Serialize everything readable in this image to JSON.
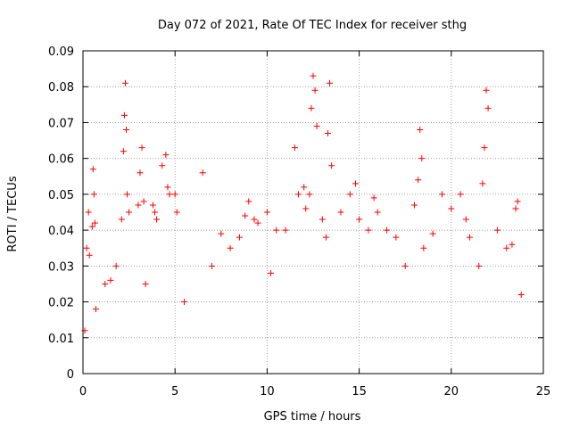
{
  "chart_data": {
    "type": "scatter",
    "title": "Day 072 of 2021, Rate Of TEC Index for receiver sthg",
    "xlabel": "GPS time / hours",
    "ylabel": "ROTI / TECUs",
    "xlim": [
      0,
      25
    ],
    "ylim": [
      0,
      0.09
    ],
    "x_ticks": [
      0,
      5,
      10,
      15,
      20,
      25
    ],
    "x_tick_labels": [
      "0",
      "5",
      "10",
      "15",
      "20",
      "25"
    ],
    "y_ticks": [
      0,
      0.01,
      0.02,
      0.03,
      0.04,
      0.05,
      0.06,
      0.07,
      0.08,
      0.09
    ],
    "y_tick_labels": [
      "0",
      "0.01",
      "0.02",
      "0.03",
      "0.04",
      "0.05",
      "0.06",
      "0.07",
      "0.08",
      "0.09"
    ],
    "grid": true,
    "marker": "+",
    "color": "#ff0000",
    "series": [
      {
        "name": "ROTI",
        "x": [
          0.1,
          0.2,
          0.3,
          0.35,
          0.5,
          0.55,
          0.6,
          0.65,
          0.7,
          1.2,
          1.5,
          1.8,
          2.1,
          2.2,
          2.25,
          2.3,
          2.35,
          2.4,
          2.5,
          3.0,
          3.1,
          3.2,
          3.3,
          3.4,
          3.8,
          3.9,
          4.0,
          4.3,
          4.5,
          4.6,
          4.7,
          5.0,
          5.1,
          5.5,
          6.5,
          7.0,
          7.5,
          8.0,
          8.5,
          8.8,
          9.0,
          9.3,
          9.5,
          10.0,
          10.2,
          10.5,
          11.0,
          11.5,
          11.7,
          12.0,
          12.1,
          12.3,
          12.4,
          12.5,
          12.6,
          12.7,
          13.0,
          13.2,
          13.3,
          13.4,
          13.5,
          14.0,
          14.5,
          14.8,
          15.0,
          15.5,
          15.8,
          16.0,
          16.5,
          17.0,
          17.5,
          18.0,
          18.2,
          18.3,
          18.4,
          18.5,
          19.0,
          19.5,
          20.0,
          20.5,
          20.8,
          21.0,
          21.5,
          21.7,
          21.8,
          21.9,
          22.0,
          22.5,
          23.0,
          23.3,
          23.5,
          23.6,
          23.8
        ],
        "y": [
          0.012,
          0.035,
          0.045,
          0.033,
          0.041,
          0.057,
          0.05,
          0.042,
          0.018,
          0.025,
          0.026,
          0.03,
          0.043,
          0.062,
          0.072,
          0.081,
          0.068,
          0.05,
          0.045,
          0.047,
          0.056,
          0.063,
          0.048,
          0.025,
          0.047,
          0.045,
          0.043,
          0.058,
          0.061,
          0.052,
          0.05,
          0.05,
          0.045,
          0.02,
          0.056,
          0.03,
          0.039,
          0.035,
          0.038,
          0.044,
          0.048,
          0.043,
          0.042,
          0.045,
          0.028,
          0.04,
          0.04,
          0.063,
          0.05,
          0.052,
          0.046,
          0.05,
          0.074,
          0.083,
          0.079,
          0.069,
          0.043,
          0.038,
          0.067,
          0.081,
          0.058,
          0.045,
          0.05,
          0.053,
          0.043,
          0.04,
          0.049,
          0.045,
          0.04,
          0.038,
          0.03,
          0.047,
          0.054,
          0.068,
          0.06,
          0.035,
          0.039,
          0.05,
          0.046,
          0.05,
          0.043,
          0.038,
          0.03,
          0.053,
          0.063,
          0.079,
          0.074,
          0.04,
          0.035,
          0.036,
          0.046,
          0.048,
          0.022
        ]
      }
    ]
  }
}
